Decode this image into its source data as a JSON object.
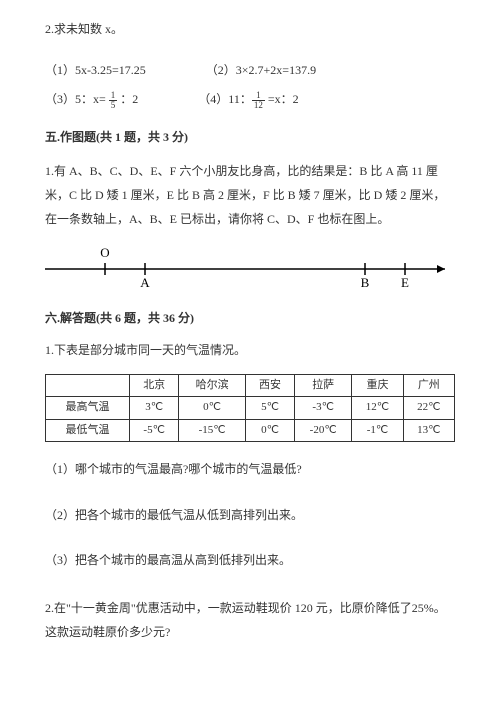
{
  "q2_title": "2.求未知数 x。",
  "equations": {
    "e1": "（1）5x-3.25=17.25",
    "e2": "（2）3×2.7+2x=137.9",
    "e3_pre": "（3）5：x= ",
    "e3_frac_num": "1",
    "e3_frac_den": "5",
    "e3_post": " ：2",
    "e4_pre": "（4）11：",
    "e4_frac_num": "1",
    "e4_frac_den": "12",
    "e4_post": " =x：2"
  },
  "section5": {
    "title": "五.作图题(共 1 题，共 3 分)",
    "body": "1.有 A、B、C、D、E、F 六个小朋友比身高，比的结果是：B 比 A 高 11 厘米，C 比 D 矮 1 厘米，E 比 B 高 2 厘米，F 比 B 矮 7 厘米，比 D 矮 2 厘米，在一条数轴上，A、B、E 已标出，请你将 C、D、F 也标在图上。",
    "labels": {
      "O": "O",
      "A": "A",
      "B": "B",
      "E": "E"
    }
  },
  "section6": {
    "title": "六.解答题(共 6 题，共 36 分)",
    "q1_intro": "1.下表是部分城市同一天的气温情况。",
    "table": {
      "headers": [
        "",
        "北京",
        "哈尔滨",
        "西安",
        "拉萨",
        "重庆",
        "广州"
      ],
      "rows": [
        [
          "最高气温",
          "3℃",
          "0℃",
          "5℃",
          "-3℃",
          "12℃",
          "22℃"
        ],
        [
          "最低气温",
          "-5℃",
          "-15℃",
          "0℃",
          "-20℃",
          "-1℃",
          "13℃"
        ]
      ]
    },
    "sub1": "（1）哪个城市的气温最高?哪个城市的气温最低?",
    "sub2": "（2）把各个城市的最低气温从低到高排列出来。",
    "sub3": "（3）把各个城市的最高温从高到低排列出来。",
    "q2": "2.在\"十一黄金周\"优惠活动中，一款运动鞋现价 120 元，比原价降低了25%。这款运动鞋原价多少元?"
  }
}
